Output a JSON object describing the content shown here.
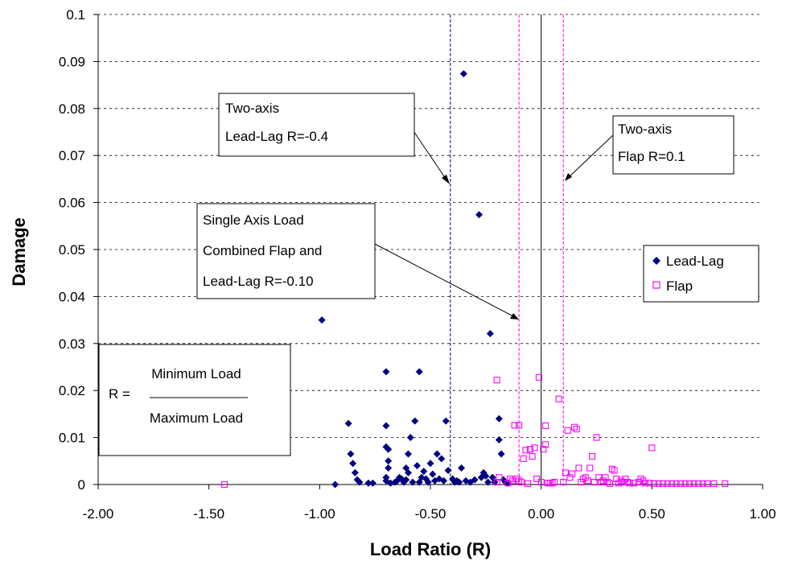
{
  "chart_data": {
    "type": "scatter",
    "title": "",
    "xlabel": "Load Ratio  (R)",
    "ylabel": "Damage",
    "xlim": [
      -2.0,
      1.0
    ],
    "ylim": [
      0,
      0.1
    ],
    "x_ticks": [
      "-2.00",
      "-1.50",
      "-1.00",
      "-0.50",
      "0.00",
      "0.50",
      "1.00"
    ],
    "y_ticks": [
      "0",
      "0.01",
      "0.02",
      "0.03",
      "0.04",
      "0.05",
      "0.06",
      "0.07",
      "0.08",
      "0.09",
      "0.1"
    ],
    "grid": "horizontal dashed",
    "legend_position": "right",
    "series": [
      {
        "name": "Lead-Lag",
        "marker": "filled diamond",
        "color": "#000080",
        "points": [
          [
            -0.93,
            0.0
          ],
          [
            -0.99,
            0.035
          ],
          [
            -0.87,
            0.013
          ],
          [
            -0.86,
            0.0065
          ],
          [
            -0.85,
            0.0045
          ],
          [
            -0.84,
            0.0025
          ],
          [
            -0.83,
            0.001
          ],
          [
            -0.82,
            0.0005
          ],
          [
            -0.78,
            0.0003
          ],
          [
            -0.76,
            0.0003
          ],
          [
            -0.7,
            0.024
          ],
          [
            -0.7,
            0.0125
          ],
          [
            -0.7,
            0.008
          ],
          [
            -0.69,
            0.0075
          ],
          [
            -0.69,
            0.005
          ],
          [
            -0.69,
            0.0035
          ],
          [
            -0.7,
            0.0015
          ],
          [
            -0.7,
            0.0008
          ],
          [
            -0.68,
            0.0003
          ],
          [
            -0.66,
            0.0005
          ],
          [
            -0.65,
            0.0008
          ],
          [
            -0.64,
            0.0015
          ],
          [
            -0.63,
            0.0012
          ],
          [
            -0.62,
            0.0005
          ],
          [
            -0.61,
            0.001
          ],
          [
            -0.61,
            0.0035
          ],
          [
            -0.6,
            0.0025
          ],
          [
            -0.59,
            0.01
          ],
          [
            -0.6,
            0.0065
          ],
          [
            -0.58,
            0.0005
          ],
          [
            -0.57,
            0.0135
          ],
          [
            -0.56,
            0.004
          ],
          [
            -0.55,
            0.024
          ],
          [
            -0.55,
            0.0005
          ],
          [
            -0.54,
            0.0015
          ],
          [
            -0.53,
            0.0028
          ],
          [
            -0.52,
            0.0012
          ],
          [
            -0.51,
            0.0005
          ],
          [
            -0.5,
            0.0045
          ],
          [
            -0.49,
            0.0022
          ],
          [
            -0.48,
            0.0008
          ],
          [
            -0.47,
            0.0065
          ],
          [
            -0.46,
            0.0012
          ],
          [
            -0.45,
            0.0055
          ],
          [
            -0.44,
            0.0008
          ],
          [
            -0.43,
            0.0135
          ],
          [
            -0.42,
            0.003
          ],
          [
            -0.4,
            0.0012
          ],
          [
            -0.39,
            0.0005
          ],
          [
            -0.38,
            0.0008
          ],
          [
            -0.37,
            0.0005
          ],
          [
            -0.36,
            0.0035
          ],
          [
            -0.35,
            0.0874
          ],
          [
            -0.34,
            0.0008
          ],
          [
            -0.32,
            0.0005
          ],
          [
            -0.3,
            0.001
          ],
          [
            -0.28,
            0.0574
          ],
          [
            -0.27,
            0.0015
          ],
          [
            -0.26,
            0.0025
          ],
          [
            -0.25,
            0.0018
          ],
          [
            -0.24,
            0.0005
          ],
          [
            -0.23,
            0.0321
          ],
          [
            -0.22,
            0.0015
          ],
          [
            -0.21,
            0.0005
          ],
          [
            -0.19,
            0.014
          ],
          [
            -0.19,
            0.0095
          ],
          [
            -0.18,
            0.0065
          ],
          [
            -0.17,
            0.001
          ],
          [
            -0.16,
            0.0005
          ],
          [
            -0.15,
            0.0003
          ]
        ]
      },
      {
        "name": "Flap",
        "marker": "open square",
        "color": "#ff00ff",
        "points": [
          [
            -1.43,
            0.0
          ],
          [
            -0.2,
            0.0222
          ],
          [
            -0.19,
            0.0015
          ],
          [
            -0.2,
            0.0005
          ],
          [
            -0.15,
            0.0003
          ],
          [
            -0.14,
            0.0012
          ],
          [
            -0.13,
            0.0008
          ],
          [
            -0.12,
            0.0126
          ],
          [
            -0.11,
            0.0012
          ],
          [
            -0.1,
            0.0126
          ],
          [
            -0.1,
            0.0008
          ],
          [
            -0.09,
            0.0005
          ],
          [
            -0.08,
            0.0055
          ],
          [
            -0.07,
            0.0073
          ],
          [
            -0.06,
            0.0002
          ],
          [
            -0.05,
            0.0075
          ],
          [
            -0.04,
            0.006
          ],
          [
            -0.03,
            0.0078
          ],
          [
            -0.02,
            0.0012
          ],
          [
            -0.01,
            0.0228
          ],
          [
            0.0,
            0.0005
          ],
          [
            0.01,
            0.0075
          ],
          [
            0.02,
            0.0125
          ],
          [
            0.02,
            0.0085
          ],
          [
            0.03,
            0.0003
          ],
          [
            0.04,
            0.0003
          ],
          [
            0.05,
            0.0003
          ],
          [
            0.06,
            0.0005
          ],
          [
            0.08,
            0.0182
          ],
          [
            0.1,
            0.0005
          ],
          [
            0.11,
            0.0025
          ],
          [
            0.12,
            0.0115
          ],
          [
            0.13,
            0.0015
          ],
          [
            0.14,
            0.0023
          ],
          [
            0.15,
            0.0122
          ],
          [
            0.16,
            0.0118
          ],
          [
            0.17,
            0.0035
          ],
          [
            0.18,
            0.0005
          ],
          [
            0.19,
            0.0012
          ],
          [
            0.2,
            0.0015
          ],
          [
            0.21,
            0.0008
          ],
          [
            0.22,
            0.0035
          ],
          [
            0.23,
            0.006
          ],
          [
            0.24,
            0.0005
          ],
          [
            0.25,
            0.01
          ],
          [
            0.26,
            0.0015
          ],
          [
            0.27,
            0.0005
          ],
          [
            0.28,
            0.0008
          ],
          [
            0.29,
            0.0015
          ],
          [
            0.3,
            0.0005
          ],
          [
            0.31,
            0.0002
          ],
          [
            0.32,
            0.0033
          ],
          [
            0.33,
            0.003
          ],
          [
            0.34,
            0.0012
          ],
          [
            0.35,
            0.0003
          ],
          [
            0.36,
            0.0008
          ],
          [
            0.37,
            0.0005
          ],
          [
            0.38,
            0.0012
          ],
          [
            0.39,
            0.0005
          ],
          [
            0.4,
            0.0003
          ],
          [
            0.42,
            0.0003
          ],
          [
            0.44,
            0.0005
          ],
          [
            0.45,
            0.0012
          ],
          [
            0.46,
            0.0008
          ],
          [
            0.47,
            0.0003
          ],
          [
            0.49,
            0.0003
          ],
          [
            0.5,
            0.0078
          ],
          [
            0.51,
            0.0002
          ],
          [
            0.53,
            0.0002
          ],
          [
            0.55,
            0.0002
          ],
          [
            0.57,
            0.0002
          ],
          [
            0.59,
            0.0002
          ],
          [
            0.61,
            0.0002
          ],
          [
            0.63,
            0.0002
          ],
          [
            0.65,
            0.0002
          ],
          [
            0.67,
            0.0002
          ],
          [
            0.69,
            0.0002
          ],
          [
            0.71,
            0.0002
          ],
          [
            0.73,
            0.0002
          ],
          [
            0.75,
            0.0002
          ],
          [
            0.78,
            0.0002
          ],
          [
            0.83,
            0.0002
          ]
        ]
      }
    ],
    "reference_lines": [
      {
        "x": -0.41,
        "color": "#000080",
        "style": "dashed"
      },
      {
        "x": -0.1,
        "color": "#ff00ff",
        "style": "dashed"
      },
      {
        "x": 0.0,
        "color": "#000000",
        "style": "solid"
      },
      {
        "x": 0.1,
        "color": "#ff00ff",
        "style": "dashed"
      }
    ],
    "annotations": [
      {
        "lines": [
          "Two-axis",
          "Lead-Lag R=-0.4"
        ],
        "arrow_to": [
          -0.41,
          0.065
        ]
      },
      {
        "lines": [
          "Two-axis",
          "Flap  R=0.1"
        ],
        "arrow_to": [
          0.1,
          0.065
        ]
      },
      {
        "lines": [
          "Single Axis Load",
          "Combined Flap and",
          "Lead-Lag R=-0.10"
        ],
        "arrow_to": [
          -0.1,
          0.035
        ]
      }
    ],
    "formula_box": {
      "prefix": "R =",
      "numerator": "Minimum Load",
      "denominator": "Maximum Load"
    }
  }
}
